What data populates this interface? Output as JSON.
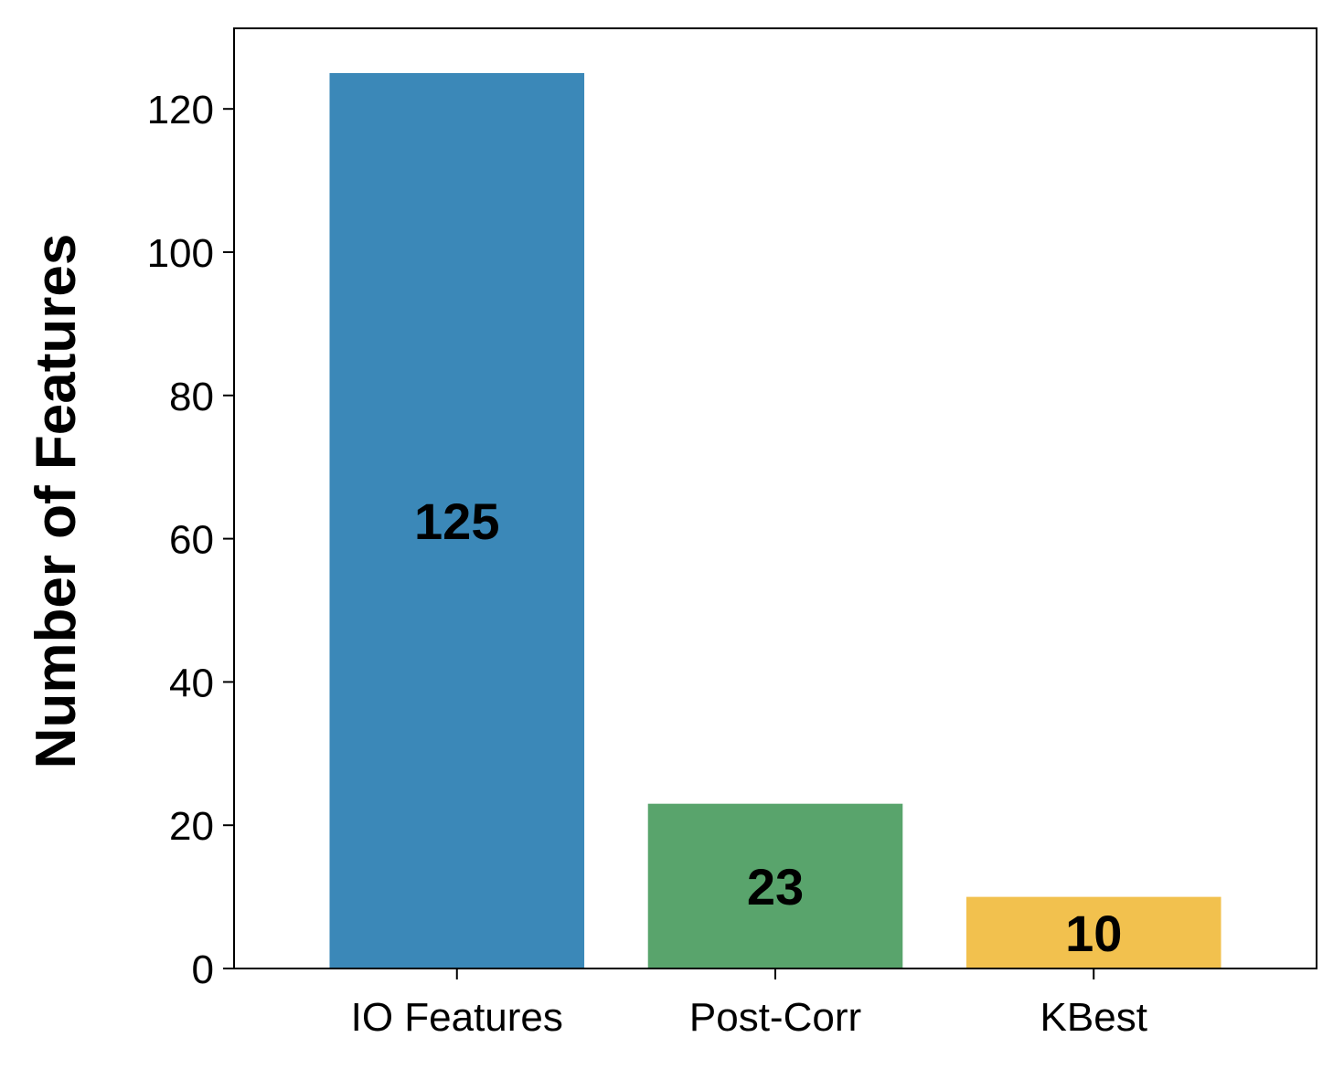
{
  "chart_data": {
    "type": "bar",
    "categories": [
      "IO Features",
      "Post-Corr",
      "KBest"
    ],
    "values": [
      125,
      23,
      10
    ],
    "data_labels": [
      "125",
      "23",
      "10"
    ],
    "colors": [
      "#3b88b8",
      "#59a46c",
      "#f2c14e"
    ],
    "title": "",
    "xlabel": "",
    "ylabel": "Number of Features",
    "ylim": [
      0,
      131.25
    ],
    "yticks": [
      0,
      20,
      40,
      60,
      80,
      100,
      120
    ],
    "grid": false,
    "legend": "none"
  }
}
